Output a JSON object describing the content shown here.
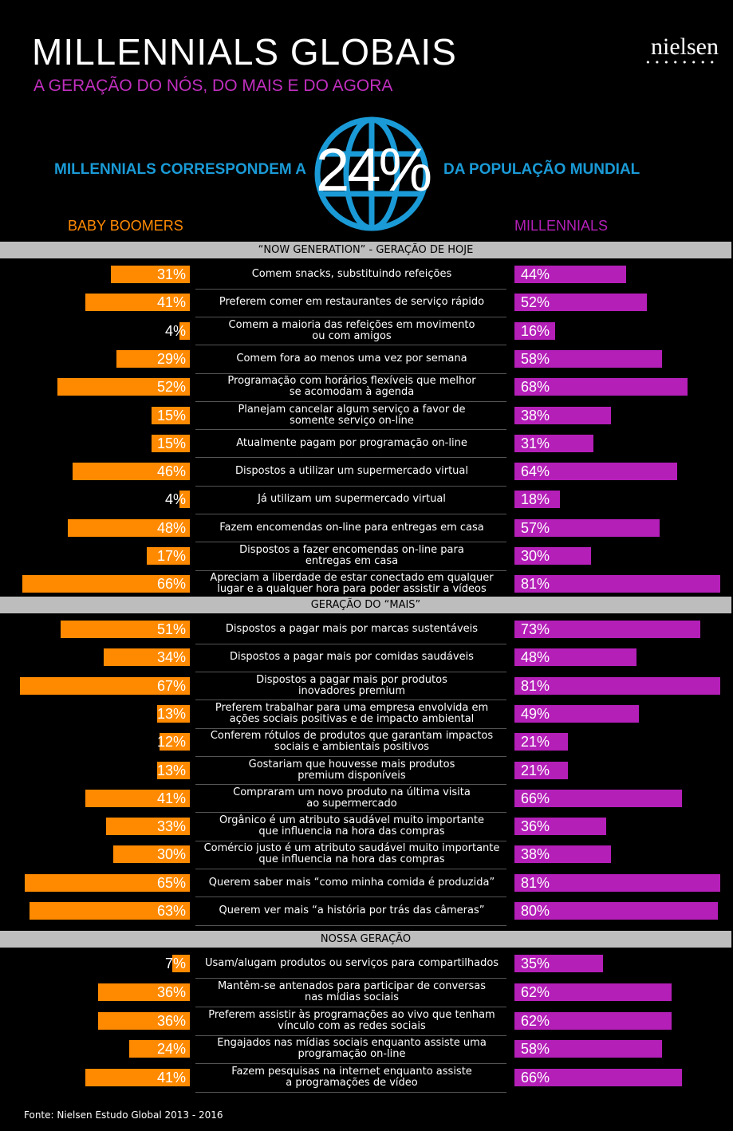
{
  "chart_data": {
    "type": "butterfly",
    "title": "MILLENNIALS GLOBAIS",
    "subtitle": "A GERAÇÃO DO NÓS, DO MAIS E DO AGORA",
    "logo": "nielsen",
    "headline": {
      "before": "MILLENNIALS CORRESPONDEM A",
      "value": "24%",
      "after": "DA POPULAÇÃO MUNDIAL"
    },
    "xlim": [
      0,
      81
    ],
    "series": [
      {
        "name": "BABY BOOMERS",
        "color": "#ff8a00"
      },
      {
        "name": "MILLENNIALS",
        "color": "#b41fb8"
      }
    ],
    "sections": [
      {
        "title": "“NOW GENERATION” - GERAÇÃO DE HOJE",
        "categories": [
          "Comem snacks, substituindo refeições",
          "Preferem comer em restaurantes de serviço rápido",
          "Comem a maioria das refeições em movimento\nou com amigos",
          "Comem fora ao menos uma vez por semana",
          "Programação com horários flexíveis que melhor\nse acomodam à agenda",
          "Planejam cancelar algum serviço a favor de\nsomente serviço on-line",
          "Atualmente pagam por programação on-line",
          "Dispostos a utilizar um supermercado virtual",
          "Já utilizam um supermercado virtual",
          "Fazem encomendas on-line para entregas em casa",
          "Dispostos a fazer encomendas on-line para\nentregas em casa",
          "Apreciam a liberdade de estar conectado em qualquer\nlugar e a qualquer hora para poder assistir a vídeos"
        ],
        "series": [
          {
            "values": [
              31,
              41,
              4,
              29,
              52,
              15,
              15,
              46,
              4,
              48,
              17,
              66
            ],
            "value_labels": [
              "31%",
              "41%",
              "4%",
              "29%",
              "52%",
              "15%",
              "15%",
              "46%",
              "4%",
              "48%",
              "17%",
              "66%"
            ]
          },
          {
            "values": [
              44,
              52,
              16,
              58,
              68,
              38,
              31,
              64,
              18,
              57,
              30,
              81
            ],
            "value_labels": [
              "44%",
              "52%",
              "16%",
              "58%",
              "68%",
              "38%",
              "31%",
              "64%",
              "18%",
              "57%",
              "30%",
              "81%"
            ]
          }
        ]
      },
      {
        "title": "GERAÇÃO DO “MAIS”",
        "categories": [
          "Dispostos a pagar mais por marcas sustentáveis",
          "Dispostos a pagar mais por comidas saudáveis",
          "Dispostos a pagar mais por produtos\ninovadores premium",
          "Preferem trabalhar para uma empresa envolvida em\nações sociais positivas e de impacto ambiental",
          "Conferem rótulos de produtos que garantam impactos\nsociais e ambientais positivos",
          "Gostariam que houvesse mais produtos\npremium disponíveis",
          "Compraram um novo produto na última visita\nao supermercado",
          "Orgânico é um atributo saudável muito importante\nque influencia na hora das compras",
          "Comércio justo é um atributo saudável muito importante\nque influencia na hora das compras",
          "Querem saber mais “como minha comida é produzida”",
          "Querem ver mais “a história por trás das câmeras”"
        ],
        "series": [
          {
            "values": [
              51,
              34,
              67,
              13,
              12,
              13,
              41,
              33,
              30,
              65,
              63
            ],
            "value_labels": [
              "51%",
              "34%",
              "67%",
              "13%",
              "12%",
              "13%",
              "41%",
              "33%",
              "30%",
              "65%",
              "63%"
            ]
          },
          {
            "values": [
              73,
              48,
              81,
              49,
              21,
              21,
              66,
              36,
              38,
              81,
              80
            ],
            "value_labels": [
              "73%",
              "48%",
              "81%",
              "49%",
              "21%",
              "21%",
              "66%",
              "36%",
              "38%",
              "81%",
              "80%"
            ]
          }
        ]
      },
      {
        "title": "NOSSA GERAÇÃO",
        "categories": [
          "Usam/alugam produtos ou serviços para compartilhados",
          "Mantêm-se antenados para participar de  conversas\nnas mídias sociais",
          "Preferem assistir às programações ao vivo que tenham\nvínculo com as redes sociais",
          "Engajados nas mídias sociais enquanto assiste uma\nprogramação on-line",
          "Fazem pesquisas na internet enquanto assiste\na programações de vídeo"
        ],
        "series": [
          {
            "values": [
              7,
              36,
              36,
              24,
              41
            ],
            "value_labels": [
              "7%",
              "36%",
              "36%",
              "24%",
              "41%"
            ]
          },
          {
            "values": [
              35,
              62,
              62,
              58,
              66
            ],
            "value_labels": [
              "35%",
              "62%",
              "62%",
              "58%",
              "66%"
            ]
          }
        ]
      }
    ],
    "source": "Fonte: Nielsen Estudo Global 2013 - 2016"
  }
}
